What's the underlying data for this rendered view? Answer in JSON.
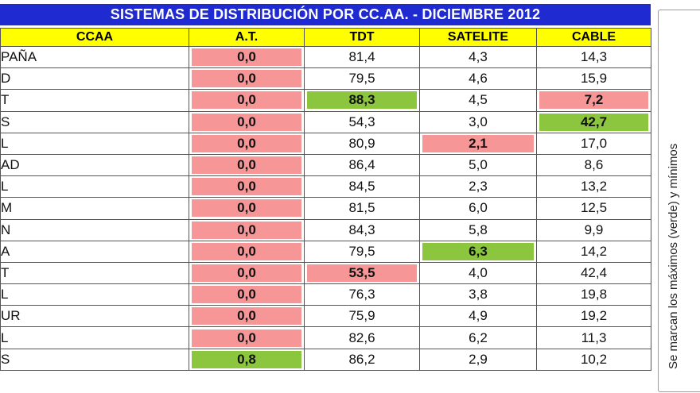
{
  "title": "SISTEMAS DE DISTRIBUCIÓN POR CC.AA. - DICIEMBRE 2012",
  "headers": [
    "CCAA",
    "A.T.",
    "TDT",
    "SATELITE",
    "CABLE"
  ],
  "rows": [
    {
      "ccaa": "PAÑA",
      "at": "0,0",
      "tdt": "81,4",
      "satelite": "4,3",
      "cable": "14,3"
    },
    {
      "ccaa": "D",
      "at": "0,0",
      "tdt": "79,5",
      "satelite": "4,6",
      "cable": "15,9"
    },
    {
      "ccaa": "T",
      "at": "0,0",
      "tdt": "88,3",
      "satelite": "4,5",
      "cable": "7,2"
    },
    {
      "ccaa": "S",
      "at": "0,0",
      "tdt": "54,3",
      "satelite": "3,0",
      "cable": "42,7"
    },
    {
      "ccaa": "L",
      "at": "0,0",
      "tdt": "80,9",
      "satelite": "2,1",
      "cable": "17,0"
    },
    {
      "ccaa": "AD",
      "at": "0,0",
      "tdt": "86,4",
      "satelite": "5,0",
      "cable": "8,6"
    },
    {
      "ccaa": "L",
      "at": "0,0",
      "tdt": "84,5",
      "satelite": "2,3",
      "cable": "13,2"
    },
    {
      "ccaa": "M",
      "at": "0,0",
      "tdt": "81,5",
      "satelite": "6,0",
      "cable": "12,5"
    },
    {
      "ccaa": "N",
      "at": "0,0",
      "tdt": "84,3",
      "satelite": "5,8",
      "cable": "9,9"
    },
    {
      "ccaa": "A",
      "at": "0,0",
      "tdt": "79,5",
      "satelite": "6,3",
      "cable": "14,2"
    },
    {
      "ccaa": "T",
      "at": "0,0",
      "tdt": "53,5",
      "satelite": "4,0",
      "cable": "42,4"
    },
    {
      "ccaa": "L",
      "at": "0,0",
      "tdt": "76,3",
      "satelite": "3,8",
      "cable": "19,8"
    },
    {
      "ccaa": "UR",
      "at": "0,0",
      "tdt": "75,9",
      "satelite": "4,9",
      "cable": "19,2"
    },
    {
      "ccaa": "L",
      "at": "0,0",
      "tdt": "82,6",
      "satelite": "6,2",
      "cable": "11,3"
    },
    {
      "ccaa": "S",
      "at": "0,8",
      "tdt": "86,2",
      "satelite": "2,9",
      "cable": "10,2"
    }
  ],
  "highlights": {
    "green": "#8cc63f",
    "red": "#f79696",
    "max": [
      {
        "row": 2,
        "col": "tdt"
      },
      {
        "row": 3,
        "col": "cable"
      },
      {
        "row": 9,
        "col": "satelite"
      },
      {
        "row": 14,
        "col": "at"
      }
    ],
    "min": [
      {
        "row": 2,
        "col": "cable"
      },
      {
        "row": 4,
        "col": "satelite"
      },
      {
        "row": 10,
        "col": "tdt"
      }
    ]
  },
  "side_note": "Se marcan los máximos (verde) y mínimos"
}
